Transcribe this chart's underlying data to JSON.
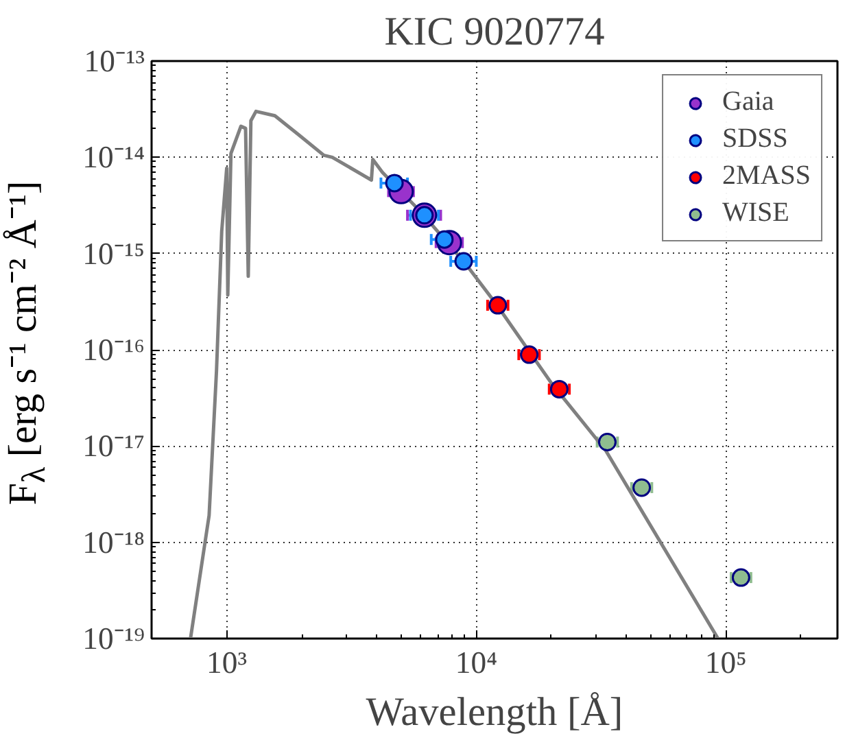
{
  "chart_data": {
    "type": "scatter",
    "title": "KIC 9020774",
    "xlabel": "Wavelength [Å]",
    "ylabel": "F$_{λ}$ [erg s⁻¹ cm⁻² Å⁻¹]",
    "log": "xy",
    "grid": true,
    "legend": "top right",
    "marker": "circle",
    "xlim": [
      500,
      280000
    ],
    "ylim": [
      1e-19,
      1e-13
    ],
    "xticks": [
      {
        "value": 1000,
        "label": "10³"
      },
      {
        "value": 10000,
        "label": "10⁴"
      },
      {
        "value": 100000,
        "label": "10⁵"
      }
    ],
    "yticks": [
      {
        "value": 1e-19,
        "label": "10⁻¹⁹"
      },
      {
        "value": 1e-18,
        "label": "10⁻¹⁸"
      },
      {
        "value": 1e-17,
        "label": "10⁻¹⁷"
      },
      {
        "value": 1e-16,
        "label": "10⁻¹⁶"
      },
      {
        "value": 1e-15,
        "label": "10⁻¹⁵"
      },
      {
        "value": 1e-14,
        "label": "10⁻¹⁴"
      },
      {
        "value": 1e-13,
        "label": "10⁻¹³"
      }
    ],
    "series": [
      {
        "type": "line",
        "marker": "none",
        "color": "#808080",
        "x": [
          716,
          850,
          910,
          955,
          1000,
          1010,
          1040,
          1140,
          1190,
          1220,
          1250,
          1310,
          1560,
          1950,
          2450,
          2650,
          3800,
          3850,
          4200,
          6000,
          9000,
          12000,
          20000,
          33000,
          93000
        ],
        "values": [
          1e-19,
          1.9e-18,
          6e-17,
          1.7e-15,
          7.7e-15,
          3.7e-16,
          1.1e-14,
          2.1e-14,
          2e-14,
          5.8e-16,
          2.4e-14,
          3e-14,
          2.7e-14,
          1.7e-14,
          1.05e-14,
          1e-14,
          5.8e-15,
          9.5e-15,
          7e-15,
          2.7e-15,
          8e-16,
          3e-16,
          4.5e-17,
          9e-18,
          1e-19
        ]
      },
      {
        "name": "Gaia",
        "color": "#9932cc",
        "x": [
          5000,
          6200,
          7800
        ],
        "values": [
          4.4e-15,
          2.5e-15,
          1.3e-15
        ],
        "xerrors": [
          [
            4450,
            5600
          ],
          [
            5300,
            7200
          ],
          [
            6900,
            8800
          ]
        ]
      },
      {
        "name": "SDSS",
        "color": "#1e90ff",
        "x": [
          4700,
          6200,
          7450,
          8900
        ],
        "values": [
          5.4e-15,
          2.5e-15,
          1.4e-15,
          8.3e-16
        ],
        "xerrors": [
          [
            4150,
            5300
          ],
          [
            5450,
            7050
          ],
          [
            6600,
            8400
          ],
          [
            7900,
            10000
          ]
        ]
      },
      {
        "name": "2MASS",
        "color": "#ff0000",
        "x": [
          12200,
          16300,
          21500
        ],
        "values": [
          2.9e-16,
          8.9e-17,
          3.9e-17
        ],
        "xerrors": [
          [
            11100,
            13400
          ],
          [
            14800,
            17900
          ],
          [
            19600,
            23600
          ]
        ]
      },
      {
        "name": "WISE",
        "color": "#8fbc8f",
        "x": [
          33500,
          46000,
          115000
        ],
        "values": [
          1.1e-17,
          3.7e-18,
          4.3e-19
        ],
        "xerrors": [
          [
            30500,
            36800
          ],
          [
            41900,
            50500
          ],
          [
            105000,
            126000
          ]
        ]
      }
    ]
  }
}
